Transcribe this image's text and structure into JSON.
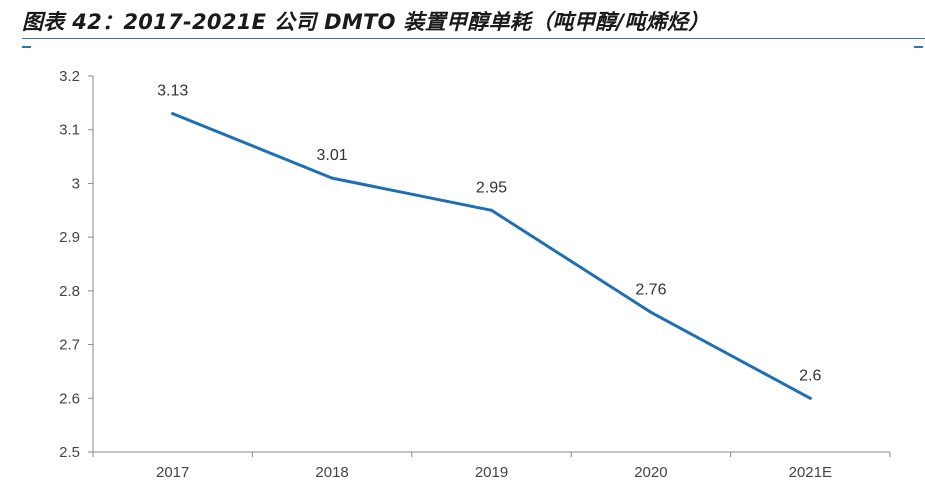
{
  "header": {
    "title": "图表 42：2017-2021E 公司 DMTO 装置甲醇单耗（吨甲醇/吨烯烃）"
  },
  "colors": {
    "accent": "#2e75b6",
    "line": "#1f6fb4",
    "axis": "#888888"
  },
  "chart_data": {
    "type": "line",
    "title": "图表 42：2017-2021E 公司 DMTO 装置甲醇单耗（吨甲醇/吨烯烃）",
    "xlabel": "",
    "ylabel": "",
    "categories": [
      "2017",
      "2018",
      "2019",
      "2020",
      "2021E"
    ],
    "series": [
      {
        "values": [
          3.13,
          3.01,
          2.95,
          2.76,
          2.6
        ]
      }
    ],
    "data_labels": [
      "3.13",
      "3.01",
      "2.95",
      "2.76",
      "2.6"
    ],
    "ylim": [
      2.5,
      3.2
    ],
    "yticks": [
      2.5,
      2.6,
      2.7,
      2.8,
      2.9,
      3.0,
      3.1,
      3.2
    ],
    "ytick_labels": [
      "2.5",
      "2.6",
      "2.7",
      "2.8",
      "2.9",
      "3",
      "3.1",
      "3.2"
    ],
    "grid": false,
    "legend": "none"
  }
}
